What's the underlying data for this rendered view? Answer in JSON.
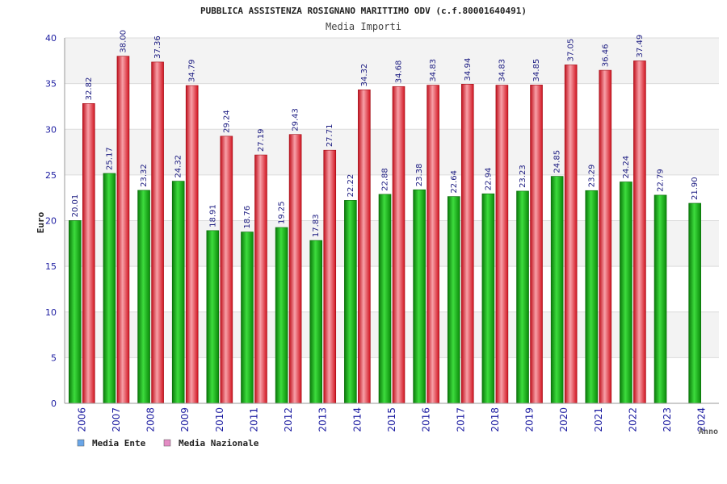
{
  "chart_data": {
    "type": "bar",
    "title": "PUBBLICA ASSISTENZA ROSIGNANO MARITTIMO ODV (c.f.80001640491)",
    "subtitle": "Media Importi",
    "xlabel": "Anno",
    "ylabel": "Euro",
    "ylim": [
      0,
      40
    ],
    "yticks": [
      0,
      5,
      10,
      15,
      20,
      25,
      30,
      35,
      40
    ],
    "grid": true,
    "legend_position": "bottom-left",
    "categories": [
      "2006",
      "2007",
      "2008",
      "2009",
      "2010",
      "2011",
      "2012",
      "2013",
      "2014",
      "2015",
      "2016",
      "2017",
      "2018",
      "2019",
      "2020",
      "2021",
      "2022",
      "2023",
      "2024"
    ],
    "series": [
      {
        "name": "Media Ente",
        "legend_color": "#6aa6e8",
        "bar_color": "#1fb81f",
        "values": [
          20.01,
          25.17,
          23.32,
          24.32,
          18.91,
          18.76,
          19.25,
          17.83,
          22.22,
          22.88,
          23.38,
          22.64,
          22.94,
          23.23,
          24.85,
          23.29,
          24.24,
          22.79,
          21.9
        ],
        "labels": [
          "20.01",
          "25.17",
          "23.32",
          "24.32",
          "18.91",
          "18.76",
          "19.25",
          "17.83",
          "22.22",
          "22.88",
          "23.38",
          "22.64",
          "22.94",
          "23.23",
          "24.85",
          "23.29",
          "24.24",
          "22.79",
          "21.90"
        ]
      },
      {
        "name": "Media Nazionale",
        "legend_color": "#e48cc4",
        "bar_color": "#e8202e",
        "values": [
          32.82,
          38.0,
          37.36,
          34.79,
          29.24,
          27.19,
          29.43,
          27.71,
          34.32,
          34.68,
          34.83,
          34.94,
          34.83,
          34.85,
          37.05,
          36.46,
          37.49,
          null,
          null
        ],
        "labels": [
          "32.82",
          "38.00",
          "37.36",
          "34.79",
          "29.24",
          "27.19",
          "29.43",
          "27.71",
          "34.32",
          "34.68",
          "34.83",
          "34.94",
          "34.83",
          "34.85",
          "37.05",
          "36.46",
          "37.49",
          null,
          null
        ]
      }
    ]
  }
}
